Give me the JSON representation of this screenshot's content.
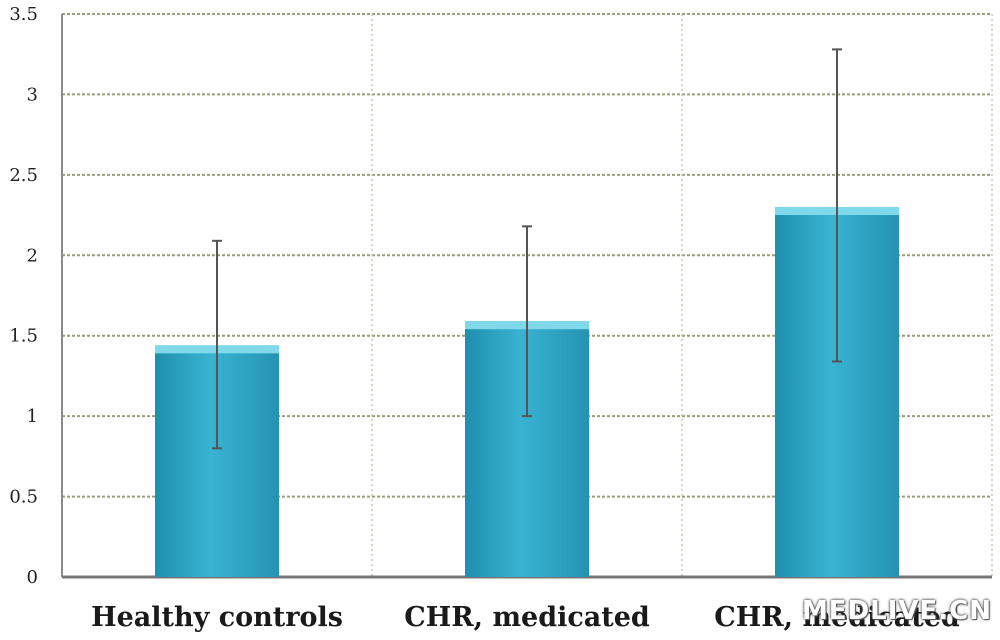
{
  "chart_data": {
    "type": "bar",
    "categories": [
      "Healthy controls",
      "CHR, medicated",
      "CHR, medicated"
    ],
    "values": [
      1.44,
      1.59,
      2.3
    ],
    "error_low": [
      0.8,
      1.0,
      1.34
    ],
    "error_high": [
      2.09,
      2.18,
      3.28
    ],
    "ylim": [
      0,
      3.5
    ],
    "y_ticks": [
      "0",
      "0.5",
      "1",
      "1.5",
      "2",
      "2.5",
      "3",
      "3.5"
    ],
    "grid": true,
    "title": "",
    "xlabel": "",
    "ylabel": "",
    "bar_color": "#2fa7c6",
    "bar_top_color": "#7fd9ea",
    "error_color": "#555555",
    "gridline_color": "#9c9c7a"
  },
  "watermark": "MEDLIVE.CN"
}
